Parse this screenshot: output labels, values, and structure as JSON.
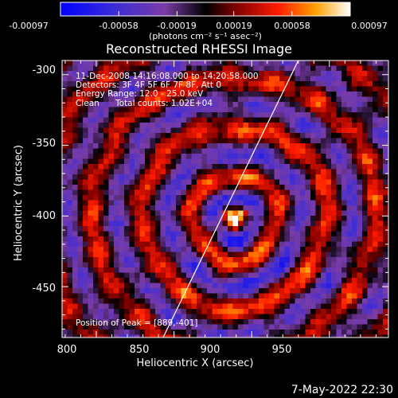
{
  "chart_data": {
    "type": "heatmap",
    "title": "Reconstructed RHESSI Image",
    "xlabel": "Heliocentric X (arcsec)",
    "ylabel": "Heliocentric Y (arcsec)",
    "xlim": [
      778,
      988
    ],
    "ylim": [
      -486,
      -290
    ],
    "xticks": [
      800,
      850,
      900,
      950
    ],
    "yticks": [
      -300,
      -350,
      -400,
      -450
    ],
    "colorbar": {
      "min": -0.00097,
      "max": 0.00097,
      "ticks": [
        "-0.00097",
        "-0.00058",
        "-0.00019",
        "0.00019",
        "0.00058",
        "0.00097"
      ],
      "unit_label": "(photons cm⁻² s⁻¹ asec⁻²)"
    },
    "peak": {
      "x": 889,
      "y": -401
    },
    "limb_line": [
      [
        843,
        -486
      ],
      [
        930,
        -290
      ]
    ],
    "annotations": {
      "line1": "11-Dec-2008 14:16:08.000 to 14:20:58.000",
      "line2": "Detectors: 3F 4F 5F 6F 7F 8F, Att 0",
      "line3": "Energy Range: 12.0 - 25.0 keV",
      "line4_a": "Clean",
      "line4_b": "Total counts: 1.02E+04",
      "peak_text": "Position of Peak = [889,-401]"
    }
  },
  "footer": {
    "timestamp": "7-May-2022 22:30"
  },
  "colors": {
    "background": "#000000",
    "axis": "#ffffff",
    "line": "#ffffff"
  }
}
